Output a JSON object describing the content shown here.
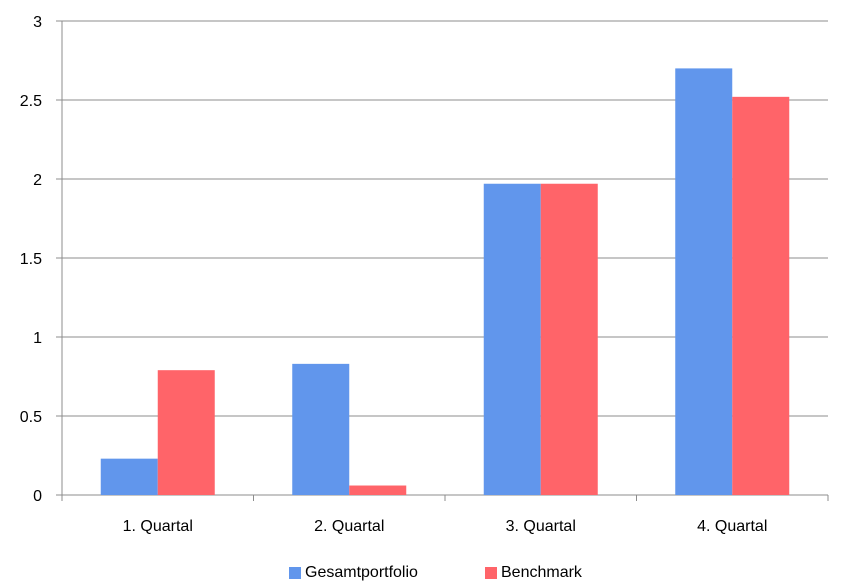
{
  "chart_data": {
    "type": "bar",
    "title": "",
    "xlabel": "",
    "ylabel": "",
    "categories": [
      "1. Quartal",
      "2. Quartal",
      "3. Quartal",
      "4. Quartal"
    ],
    "series": [
      {
        "name": "Gesamtportfolio",
        "color": "#6196EC",
        "values": [
          0.23,
          0.83,
          1.97,
          2.7
        ]
      },
      {
        "name": "Benchmark",
        "color": "#FF6469",
        "values": [
          0.79,
          0.06,
          1.97,
          2.52
        ]
      }
    ],
    "ylim": [
      0,
      3
    ],
    "yticks": [
      "0",
      "0.5",
      "1",
      "1.5",
      "2",
      "2.5",
      "3"
    ],
    "grid": true,
    "legend_position": "bottom"
  }
}
